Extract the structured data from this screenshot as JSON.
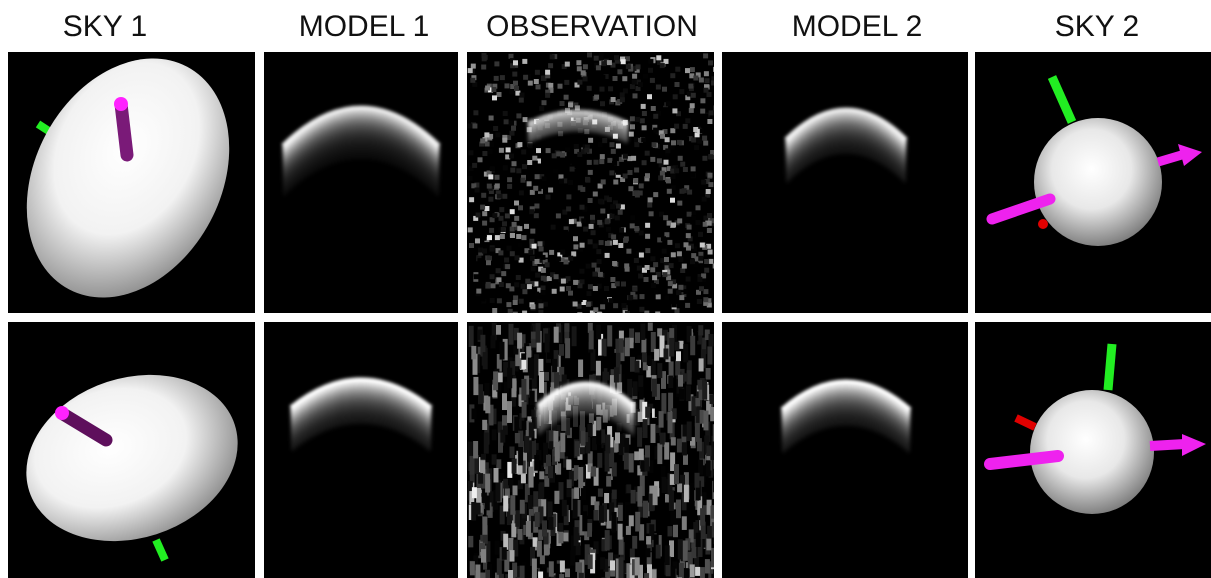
{
  "headers": [
    "SKY 1",
    "MODEL 1",
    "OBSERVATION",
    "MODEL 2",
    "SKY 2"
  ]
}
